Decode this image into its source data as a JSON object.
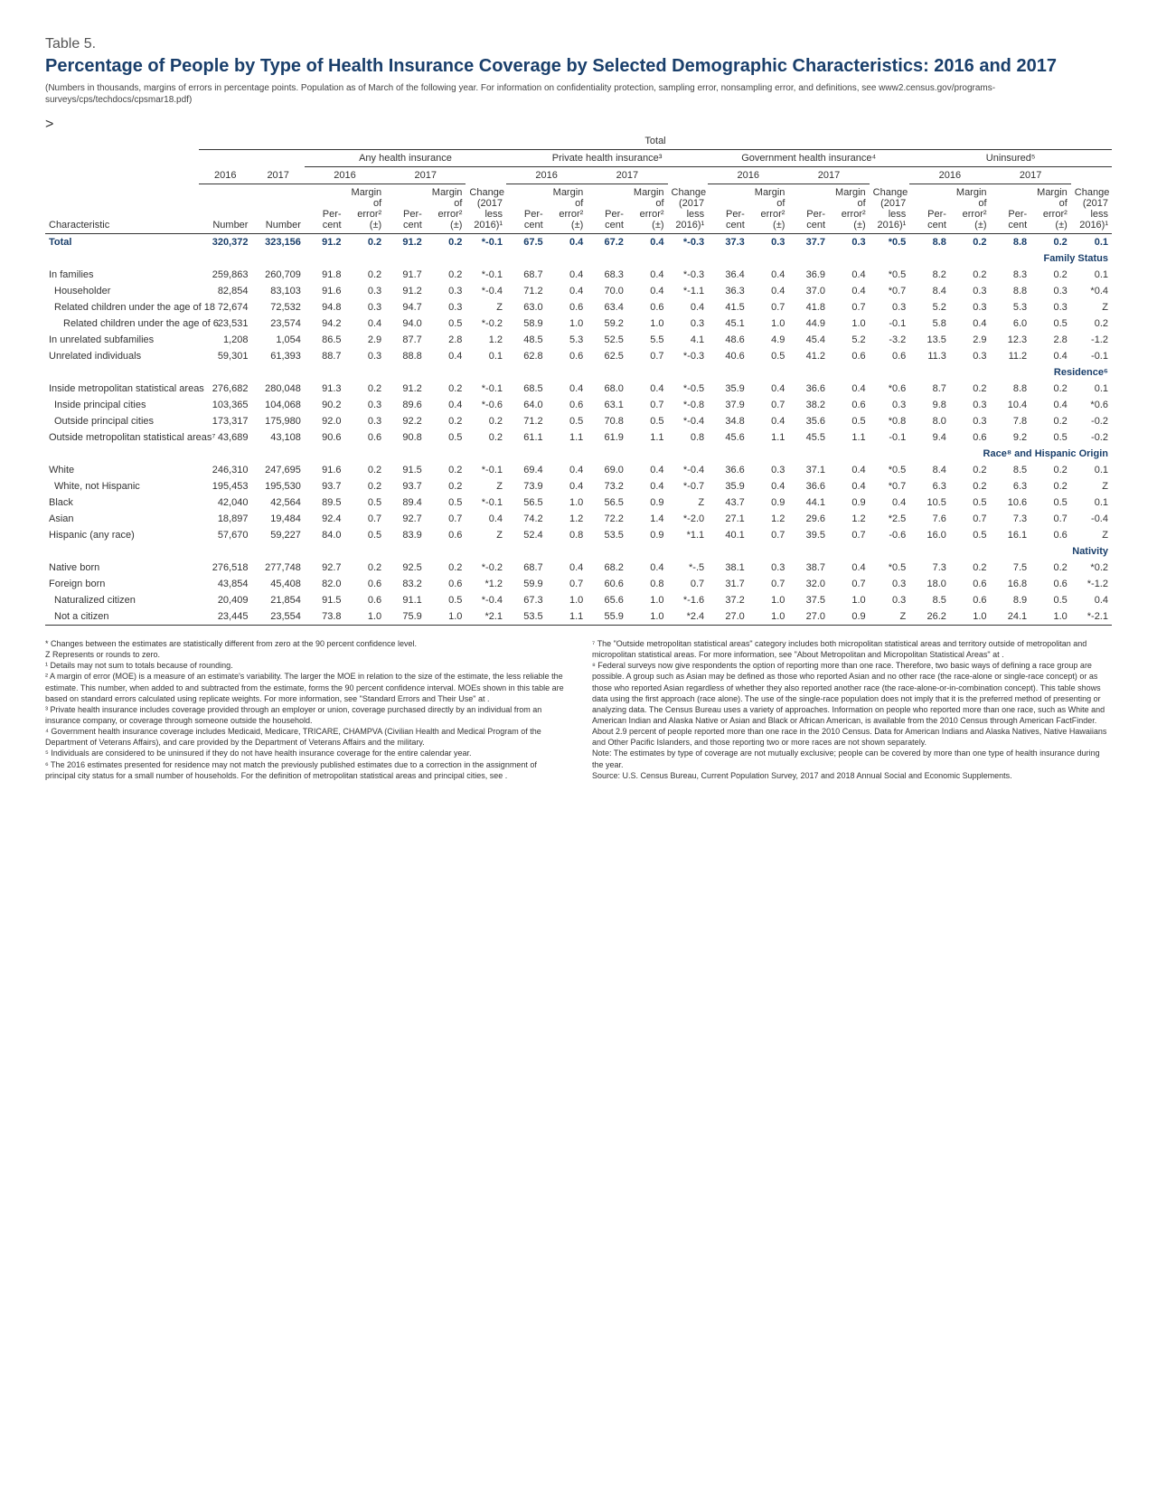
{
  "label": "Table 5.",
  "title": "Percentage of People by Type of Health Insurance Coverage by Selected Demographic Characteristics: 2016 and 2017",
  "subtitle": "(Numbers in thousands, margins of errors in percentage points. Population as of March of the following year. For information on confidentiality protection, sampling error, nonsampling error, and definitions, see www2.census.gov/programs-surveys/cps/techdocs/cpsmar18.pdf)",
  "spanners": {
    "top": [
      "Total"
    ],
    "mid": [
      "Any health insurance",
      "Private health insurance³",
      "Government health insurance⁴",
      "Uninsured⁵"
    ],
    "years": [
      "2016",
      "2017"
    ],
    "charHead": "Characteristic",
    "subheads": [
      "Number",
      "Number",
      "Per- cent",
      "Margin of error² (±)",
      "Per- cent",
      "Margin of error² (±)",
      "Change (2017 less 2016)¹",
      "Per- cent",
      "Margin of error² (±)",
      "Per- cent",
      "Margin of error² (±)",
      "Change (2017 less 2016)¹",
      "Per- cent",
      "Margin of error² (±)",
      "Per- cent",
      "Margin of error² (±)",
      "Change (2017 less 2016)¹",
      "Per- cent",
      "Margin of error² (±)",
      "Per- cent",
      "Margin of error² (±)",
      "Change (2017 less 2016)¹"
    ]
  },
  "sections": [
    {
      "rows": [
        {
          "label": "Total",
          "cls": "total-row",
          "indent": 0,
          "cells": [
            "320,372",
            "323,156",
            "91.2",
            "0.2",
            "91.2",
            "0.2",
            "*-0.1",
            "67.5",
            "0.4",
            "67.2",
            "0.4",
            "*-0.3",
            "37.3",
            "0.3",
            "37.7",
            "0.3",
            "*0.5",
            "8.8",
            "0.2",
            "8.8",
            "0.2",
            "0.1"
          ]
        }
      ]
    },
    {
      "head": "Family Status",
      "rows": [
        {
          "label": "In families",
          "indent": 0,
          "cells": [
            "259,863",
            "260,709",
            "91.8",
            "0.2",
            "91.7",
            "0.2",
            "*-0.1",
            "68.7",
            "0.4",
            "68.3",
            "0.4",
            "*-0.3",
            "36.4",
            "0.4",
            "36.9",
            "0.4",
            "*0.5",
            "8.2",
            "0.2",
            "8.3",
            "0.2",
            "0.1"
          ]
        },
        {
          "label": "Householder",
          "indent": 1,
          "cells": [
            "82,854",
            "83,103",
            "91.6",
            "0.3",
            "91.2",
            "0.3",
            "*-0.4",
            "71.2",
            "0.4",
            "70.0",
            "0.4",
            "*-1.1",
            "36.3",
            "0.4",
            "37.0",
            "0.4",
            "*0.7",
            "8.4",
            "0.3",
            "8.8",
            "0.3",
            "*0.4"
          ]
        },
        {
          "label": "Related children under the age of 18",
          "indent": 1,
          "cells": [
            "72,674",
            "72,532",
            "94.8",
            "0.3",
            "94.7",
            "0.3",
            "Z",
            "63.0",
            "0.6",
            "63.4",
            "0.6",
            "0.4",
            "41.5",
            "0.7",
            "41.8",
            "0.7",
            "0.3",
            "5.2",
            "0.3",
            "5.3",
            "0.3",
            "Z"
          ]
        },
        {
          "label": "Related children under the age of 6",
          "indent": 2,
          "cells": [
            "23,531",
            "23,574",
            "94.2",
            "0.4",
            "94.0",
            "0.5",
            "*-0.2",
            "58.9",
            "1.0",
            "59.2",
            "1.0",
            "0.3",
            "45.1",
            "1.0",
            "44.9",
            "1.0",
            "-0.1",
            "5.8",
            "0.4",
            "6.0",
            "0.5",
            "0.2"
          ]
        },
        {
          "label": "In unrelated subfamilies",
          "indent": 0,
          "cells": [
            "1,208",
            "1,054",
            "86.5",
            "2.9",
            "87.7",
            "2.8",
            "1.2",
            "48.5",
            "5.3",
            "52.5",
            "5.5",
            "4.1",
            "48.6",
            "4.9",
            "45.4",
            "5.2",
            "-3.2",
            "13.5",
            "2.9",
            "12.3",
            "2.8",
            "-1.2"
          ]
        },
        {
          "label": "Unrelated individuals",
          "indent": 0,
          "cells": [
            "59,301",
            "61,393",
            "88.7",
            "0.3",
            "88.8",
            "0.4",
            "0.1",
            "62.8",
            "0.6",
            "62.5",
            "0.7",
            "*-0.3",
            "40.6",
            "0.5",
            "41.2",
            "0.6",
            "0.6",
            "11.3",
            "0.3",
            "11.2",
            "0.4",
            "-0.1"
          ]
        }
      ]
    },
    {
      "head": "Residence⁶",
      "rows": [
        {
          "label": "Inside metropolitan statistical areas",
          "indent": 0,
          "cells": [
            "276,682",
            "280,048",
            "91.3",
            "0.2",
            "91.2",
            "0.2",
            "*-0.1",
            "68.5",
            "0.4",
            "68.0",
            "0.4",
            "*-0.5",
            "35.9",
            "0.4",
            "36.6",
            "0.4",
            "*0.6",
            "8.7",
            "0.2",
            "8.8",
            "0.2",
            "0.1"
          ]
        },
        {
          "label": "Inside principal cities",
          "indent": 1,
          "cells": [
            "103,365",
            "104,068",
            "90.2",
            "0.3",
            "89.6",
            "0.4",
            "*-0.6",
            "64.0",
            "0.6",
            "63.1",
            "0.7",
            "*-0.8",
            "37.9",
            "0.7",
            "38.2",
            "0.6",
            "0.3",
            "9.8",
            "0.3",
            "10.4",
            "0.4",
            "*0.6"
          ]
        },
        {
          "label": "Outside principal cities",
          "indent": 1,
          "cells": [
            "173,317",
            "175,980",
            "92.0",
            "0.3",
            "92.2",
            "0.2",
            "0.2",
            "71.2",
            "0.5",
            "70.8",
            "0.5",
            "*-0.4",
            "34.8",
            "0.4",
            "35.6",
            "0.5",
            "*0.8",
            "8.0",
            "0.3",
            "7.8",
            "0.2",
            "-0.2"
          ]
        },
        {
          "label": "Outside metropolitan statistical areas⁷",
          "indent": 0,
          "cells": [
            "43,689",
            "43,108",
            "90.6",
            "0.6",
            "90.8",
            "0.5",
            "0.2",
            "61.1",
            "1.1",
            "61.9",
            "1.1",
            "0.8",
            "45.6",
            "1.1",
            "45.5",
            "1.1",
            "-0.1",
            "9.4",
            "0.6",
            "9.2",
            "0.5",
            "-0.2"
          ]
        }
      ]
    },
    {
      "head": "Race⁸ and Hispanic Origin",
      "rows": [
        {
          "label": "White",
          "indent": 0,
          "cells": [
            "246,310",
            "247,695",
            "91.6",
            "0.2",
            "91.5",
            "0.2",
            "*-0.1",
            "69.4",
            "0.4",
            "69.0",
            "0.4",
            "*-0.4",
            "36.6",
            "0.3",
            "37.1",
            "0.4",
            "*0.5",
            "8.4",
            "0.2",
            "8.5",
            "0.2",
            "0.1"
          ]
        },
        {
          "label": "White, not Hispanic",
          "indent": 1,
          "cells": [
            "195,453",
            "195,530",
            "93.7",
            "0.2",
            "93.7",
            "0.2",
            "Z",
            "73.9",
            "0.4",
            "73.2",
            "0.4",
            "*-0.7",
            "35.9",
            "0.4",
            "36.6",
            "0.4",
            "*0.7",
            "6.3",
            "0.2",
            "6.3",
            "0.2",
            "Z"
          ]
        },
        {
          "label": "Black",
          "indent": 0,
          "cells": [
            "42,040",
            "42,564",
            "89.5",
            "0.5",
            "89.4",
            "0.5",
            "*-0.1",
            "56.5",
            "1.0",
            "56.5",
            "0.9",
            "Z",
            "43.7",
            "0.9",
            "44.1",
            "0.9",
            "0.4",
            "10.5",
            "0.5",
            "10.6",
            "0.5",
            "0.1"
          ]
        },
        {
          "label": "Asian",
          "indent": 0,
          "cells": [
            "18,897",
            "19,484",
            "92.4",
            "0.7",
            "92.7",
            "0.7",
            "0.4",
            "74.2",
            "1.2",
            "72.2",
            "1.4",
            "*-2.0",
            "27.1",
            "1.2",
            "29.6",
            "1.2",
            "*2.5",
            "7.6",
            "0.7",
            "7.3",
            "0.7",
            "-0.4"
          ]
        },
        {
          "label": "Hispanic (any race)",
          "indent": 0,
          "cells": [
            "57,670",
            "59,227",
            "84.0",
            "0.5",
            "83.9",
            "0.6",
            "Z",
            "52.4",
            "0.8",
            "53.5",
            "0.9",
            "*1.1",
            "40.1",
            "0.7",
            "39.5",
            "0.7",
            "-0.6",
            "16.0",
            "0.5",
            "16.1",
            "0.6",
            "Z"
          ]
        }
      ]
    },
    {
      "head": "Nativity",
      "rows": [
        {
          "label": "Native born",
          "indent": 0,
          "cells": [
            "276,518",
            "277,748",
            "92.7",
            "0.2",
            "92.5",
            "0.2",
            "*-0.2",
            "68.7",
            "0.4",
            "68.2",
            "0.4",
            "*-.5",
            "38.1",
            "0.3",
            "38.7",
            "0.4",
            "*0.5",
            "7.3",
            "0.2",
            "7.5",
            "0.2",
            "*0.2"
          ]
        },
        {
          "label": "Foreign born",
          "indent": 0,
          "cells": [
            "43,854",
            "45,408",
            "82.0",
            "0.6",
            "83.2",
            "0.6",
            "*1.2",
            "59.9",
            "0.7",
            "60.6",
            "0.8",
            "0.7",
            "31.7",
            "0.7",
            "32.0",
            "0.7",
            "0.3",
            "18.0",
            "0.6",
            "16.8",
            "0.6",
            "*-1.2"
          ]
        },
        {
          "label": "Naturalized citizen",
          "indent": 1,
          "cells": [
            "20,409",
            "21,854",
            "91.5",
            "0.6",
            "91.1",
            "0.5",
            "*-0.4",
            "67.3",
            "1.0",
            "65.6",
            "1.0",
            "*-1.6",
            "37.2",
            "1.0",
            "37.5",
            "1.0",
            "0.3",
            "8.5",
            "0.6",
            "8.9",
            "0.5",
            "0.4"
          ]
        },
        {
          "label": "Not a citizen",
          "indent": 1,
          "cells": [
            "23,445",
            "23,554",
            "73.8",
            "1.0",
            "75.9",
            "1.0",
            "*2.1",
            "53.5",
            "1.1",
            "55.9",
            "1.0",
            "*2.4",
            "27.0",
            "1.0",
            "27.0",
            "0.9",
            "Z",
            "26.2",
            "1.0",
            "24.1",
            "1.0",
            "*-2.1"
          ]
        }
      ]
    }
  ],
  "footnotes": {
    "left": "* Changes between the estimates are statistically different from zero at the 90 percent confidence level.\nZ Represents or rounds to zero.\n¹ Details may not sum to totals because of rounding.\n² A margin of error (MOE) is a measure of an estimate's variability. The larger the MOE in relation to the size of the estimate, the less reliable the estimate. This number, when added to and subtracted from the estimate, forms the 90 percent confidence interval. MOEs shown in this table are based on standard errors calculated using replicate weights. For more information, see \"Standard Errors and Their Use\" at <www2.census.gov/library/publications/2018/demo/p60-264sa.pdf>.\n³ Private health insurance includes coverage provided through an employer or union, coverage purchased directly by an individual from an insurance company, or coverage through someone outside the household.\n⁴ Government health insurance coverage includes Medicaid, Medicare, TRICARE, CHAMPVA (Civilian Health and Medical Program of the Department of Veterans Affairs), and care provided by the Department of Veterans Affairs and the military.\n⁵ Individuals are considered to be uninsured if they do not have health insurance coverage for the entire calendar year.\n⁶ The 2016 estimates presented for residence may not match the previously published estimates due to a correction in the assignment of principal city status for a small number of households. For the definition of metropolitan statistical areas and principal cities, see <www.census.gov/programs-surveys/metro-micro/about/glossary.html>.",
    "right": "⁷ The \"Outside metropolitan statistical areas\" category includes both micropolitan statistical areas and territory outside of metropolitan and micropolitan statistical areas. For more information, see \"About Metropolitan and Micropolitan Statistical Areas\" at <www.census.gov/population/metro/about>.\n⁸ Federal surveys now give respondents the option of reporting more than one race. Therefore, two basic ways of defining a race group are possible. A group such as Asian may be defined as those who reported Asian and no other race (the race-alone or single-race concept) or as those who reported Asian regardless of whether they also reported another race (the race-alone-or-in-combination concept). This table shows data using the first approach (race alone). The use of the single-race population does not imply that it is the preferred method of presenting or analyzing data. The Census Bureau uses a variety of approaches. Information on people who reported more than one race, such as White and American Indian and Alaska Native or Asian and Black or African American, is available from the 2010 Census through American FactFinder. About 2.9 percent of people reported more than one race in the 2010 Census. Data for American Indians and Alaska Natives, Native Hawaiians and Other Pacific Islanders, and those reporting two or more races are not shown separately.\nNote: The estimates by type of coverage are not mutually exclusive; people can be covered by more than one type of health insurance during the year.\nSource: U.S. Census Bureau, Current Population Survey, 2017 and 2018 Annual Social and Economic Supplements."
  },
  "colors": {
    "heading": "#1a3f6b",
    "text": "#333333",
    "rule": "#333333",
    "background": "#ffffff"
  },
  "typography": {
    "title_size_pt": 15,
    "body_size_pt": 8,
    "footnote_size_pt": 7,
    "font_family": "Arial, Helvetica, sans-serif"
  }
}
